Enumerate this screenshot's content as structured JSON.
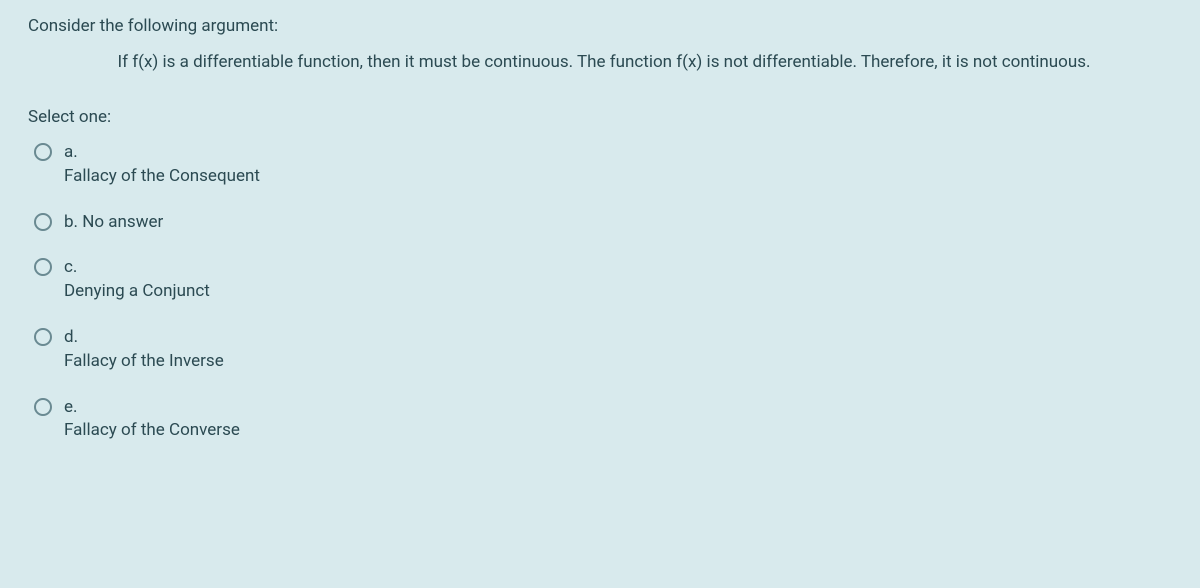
{
  "colors": {
    "background": "#d8eaed",
    "text": "#2b4a52",
    "radio_border": "#6a8a92"
  },
  "question": {
    "intro": "Consider the following argument:",
    "argument": "If f(x) is a differentiable function, then it must be continuous. The function f(x) is not differentiable. Therefore, it is not continuous.",
    "select_label": "Select one:",
    "options": [
      {
        "letter": "a.",
        "text": "Fallacy of the Consequent",
        "inline": false
      },
      {
        "letter": "b.",
        "text": "No answer",
        "inline": true
      },
      {
        "letter": "c.",
        "text": "Denying a Conjunct",
        "inline": false
      },
      {
        "letter": "d.",
        "text": "Fallacy of the Inverse",
        "inline": false
      },
      {
        "letter": "e.",
        "text": "Fallacy of the Converse",
        "inline": false
      }
    ]
  }
}
